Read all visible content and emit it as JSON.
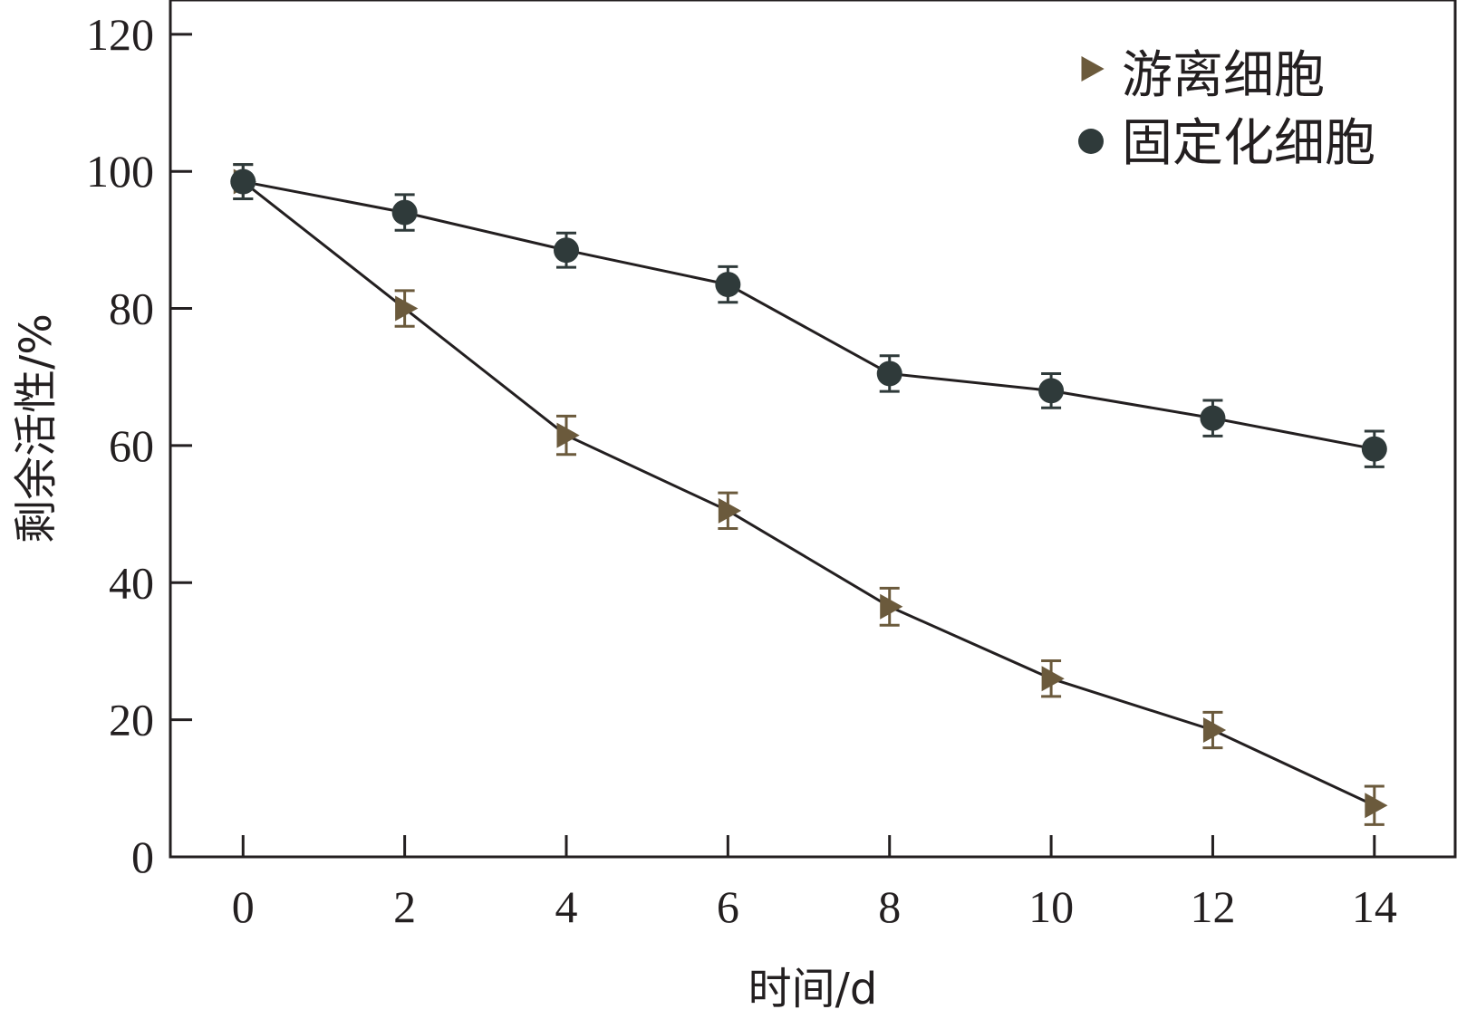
{
  "chart_data": {
    "type": "line",
    "xlabel": "时间/d",
    "ylabel": "剩余活性/%",
    "xlim": [
      -0.9,
      15
    ],
    "ylim": [
      0,
      125
    ],
    "x_ticks": [
      0,
      2,
      4,
      6,
      8,
      10,
      12,
      14
    ],
    "y_ticks": [
      0,
      20,
      40,
      60,
      80,
      100,
      120
    ],
    "grid": false,
    "legend_position": "top-right",
    "x": [
      0,
      2,
      4,
      6,
      8,
      10,
      12,
      14
    ],
    "series": [
      {
        "name": "游离细胞",
        "marker": "triangle-right",
        "color": "#6b5a3c",
        "values": [
          98.5,
          80,
          61.5,
          50.5,
          36.5,
          26,
          18.5,
          7.5
        ],
        "errors": [
          2.5,
          2.6,
          2.8,
          2.6,
          2.7,
          2.6,
          2.6,
          2.8
        ]
      },
      {
        "name": "固定化细胞",
        "marker": "circle",
        "color": "#2f3a3a",
        "values": [
          98.5,
          94,
          88.5,
          83.5,
          70.5,
          68,
          64,
          59.5
        ],
        "errors": [
          2.5,
          2.6,
          2.5,
          2.6,
          2.6,
          2.5,
          2.6,
          2.6
        ]
      }
    ]
  }
}
